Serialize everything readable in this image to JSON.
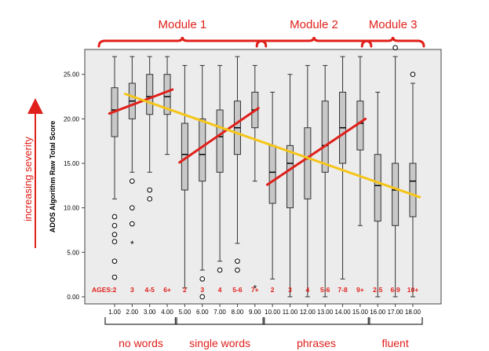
{
  "chart_data": {
    "type": "box",
    "ylabel": "ADOS Algorithm Raw Total Score",
    "side_label": "increasing severity",
    "ylim": [
      -0.8,
      27.8
    ],
    "yticks": [
      0,
      5,
      10,
      15,
      20,
      25
    ],
    "ytick_labels": [
      "0.00",
      "5.00",
      "10.00",
      "15.00",
      "20.00",
      "25.00"
    ],
    "grid": false,
    "colors": {
      "box": "#c8c8c8",
      "frame_bg": "#ececec",
      "fit_red": "#e0201b",
      "fit_yellow": "#f5c518",
      "annot": "#e0201b"
    },
    "x_tick_labels": [
      "1.00",
      "2.00",
      "3.00",
      "4.00",
      "5.00",
      "6.00",
      "7.00",
      "8.00",
      "9.00",
      "10.00",
      "11.00",
      "12.00",
      "13.00",
      "14.00",
      "15.00",
      "16.00",
      "17.00",
      "18.00"
    ],
    "ages_label": "AGES:",
    "ages": [
      "2",
      "3",
      "4-5",
      "6+",
      "2",
      "3",
      "4",
      "5-6",
      "7+",
      "2",
      "3",
      "4",
      "5-6",
      "7-8",
      "9+",
      "2-5",
      "6-9",
      "10+"
    ],
    "boxes": [
      {
        "q1": 18,
        "median": 21,
        "q3": 23.5,
        "whisker_low": 11,
        "whisker_high": 27
      },
      {
        "q1": 20,
        "median": 22,
        "q3": 24,
        "whisker_low": 14,
        "whisker_high": 27
      },
      {
        "q1": 20.5,
        "median": 22.5,
        "q3": 25,
        "whisker_low": 14,
        "whisker_high": 27
      },
      {
        "q1": 20.5,
        "median": 22.5,
        "q3": 25,
        "whisker_low": 16,
        "whisker_high": 27
      },
      {
        "q1": 12,
        "median": 16,
        "q3": 19.5,
        "whisker_low": 1,
        "whisker_high": 26
      },
      {
        "q1": 13,
        "median": 16,
        "q3": 20,
        "whisker_low": 3,
        "whisker_high": 26
      },
      {
        "q1": 14,
        "median": 18,
        "q3": 21,
        "whisker_low": 4,
        "whisker_high": 26
      },
      {
        "q1": 16,
        "median": 19,
        "q3": 22,
        "whisker_low": 6,
        "whisker_high": 27
      },
      {
        "q1": 19,
        "median": 21,
        "q3": 23,
        "whisker_low": 13,
        "whisker_high": 26
      },
      {
        "q1": 10.5,
        "median": 14,
        "q3": 17,
        "whisker_low": 2,
        "whisker_high": 23
      },
      {
        "q1": 10,
        "median": 15,
        "q3": 17,
        "whisker_low": 0,
        "whisker_high": 25
      },
      {
        "q1": 11,
        "median": 15.5,
        "q3": 19,
        "whisker_low": 0,
        "whisker_high": 26
      },
      {
        "q1": 14,
        "median": 17,
        "q3": 22,
        "whisker_low": 0,
        "whisker_high": 26
      },
      {
        "q1": 15,
        "median": 19,
        "q3": 23,
        "whisker_low": 2,
        "whisker_high": 27
      },
      {
        "q1": 16.5,
        "median": 19.5,
        "q3": 22,
        "whisker_low": 8,
        "whisker_high": 27
      },
      {
        "q1": 8.5,
        "median": 12.5,
        "q3": 16,
        "whisker_low": 0,
        "whisker_high": 23
      },
      {
        "q1": 8,
        "median": 12,
        "q3": 15,
        "whisker_low": 0,
        "whisker_high": 27
      },
      {
        "q1": 9,
        "median": 13,
        "q3": 15,
        "whisker_low": 0,
        "whisker_high": 24
      }
    ],
    "outliers": [
      {
        "x": 1,
        "y": 9,
        "marker": "circle"
      },
      {
        "x": 1,
        "y": 8,
        "marker": "circle"
      },
      {
        "x": 1,
        "y": 7,
        "marker": "circle"
      },
      {
        "x": 1,
        "y": 6.2,
        "marker": "circle"
      },
      {
        "x": 1,
        "y": 4,
        "marker": "circle"
      },
      {
        "x": 1,
        "y": 2.2,
        "marker": "circle"
      },
      {
        "x": 2,
        "y": 13,
        "marker": "circle"
      },
      {
        "x": 2,
        "y": 10,
        "marker": "circle"
      },
      {
        "x": 2,
        "y": 8.2,
        "marker": "circle"
      },
      {
        "x": 2,
        "y": 6,
        "marker": "star"
      },
      {
        "x": 3,
        "y": 12,
        "marker": "circle"
      },
      {
        "x": 3,
        "y": 11,
        "marker": "circle"
      },
      {
        "x": 6,
        "y": 2,
        "marker": "circle"
      },
      {
        "x": 6,
        "y": 0,
        "marker": "circle"
      },
      {
        "x": 7,
        "y": 3,
        "marker": "circle"
      },
      {
        "x": 8,
        "y": 4,
        "marker": "circle"
      },
      {
        "x": 8,
        "y": 3,
        "marker": "circle"
      },
      {
        "x": 9,
        "y": 1,
        "marker": "star"
      },
      {
        "x": 17,
        "y": 28,
        "marker": "circle"
      },
      {
        "x": 18,
        "y": 25,
        "marker": "circle"
      }
    ],
    "fit_lines": [
      {
        "name": "module1-no-words",
        "color": "red",
        "x": [
          0.7,
          4.3
        ],
        "y": [
          20.6,
          23.3
        ]
      },
      {
        "name": "module1-single-words",
        "color": "red",
        "x": [
          4.7,
          9.2
        ],
        "y": [
          15.1,
          21.2
        ]
      },
      {
        "name": "module2-phrases",
        "color": "red",
        "x": [
          9.7,
          15.3
        ],
        "y": [
          12.6,
          20
        ]
      },
      {
        "name": "overall",
        "color": "yellow",
        "x": [
          1.6,
          18.4
        ],
        "y": [
          22.8,
          11.2
        ]
      }
    ],
    "modules": [
      {
        "label": "Module 1",
        "from": 1,
        "to": 9
      },
      {
        "label": "Module 2",
        "from": 10,
        "to": 15
      },
      {
        "label": "Module 3",
        "from": 16,
        "to": 18
      }
    ],
    "groups": [
      {
        "label": "no words",
        "from": 1,
        "to": 4
      },
      {
        "label": "single words",
        "from": 5,
        "to": 9
      },
      {
        "label": "phrases",
        "from": 10,
        "to": 15
      },
      {
        "label": "fluent",
        "from": 16,
        "to": 18
      }
    ]
  }
}
